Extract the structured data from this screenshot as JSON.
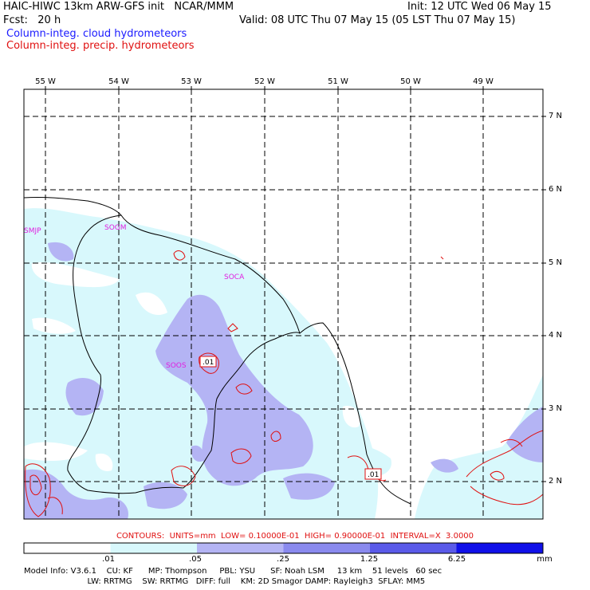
{
  "header": {
    "model_title": "HAIC-HIWC 13km ARW-GFS init   NCAR/MMM",
    "init_line": "Init: 12 UTC Wed 06 May 15",
    "fcst_line": "Fcst:   20 h",
    "valid_line": "Valid: 08 UTC Thu 07 May 15 (05 LST Thu 07 May 15)",
    "field_cloud": "Column-integ. cloud hydrometeors",
    "field_precip": "Column-integ. precip. hydrometeors"
  },
  "map": {
    "lon_labels": [
      "55 W",
      "54 W",
      "53 W",
      "52 W",
      "51 W",
      "50 W",
      "49 W"
    ],
    "lat_labels": [
      "7 N",
      "6 N",
      "5 N",
      "4 N",
      "3 N",
      "2 N"
    ],
    "stations": [
      "SMJP",
      "SOGM",
      "SOCA",
      "SOOS"
    ],
    "contour_labels": [
      ".01",
      ".01"
    ]
  },
  "contours_line": "CONTOURS:  UNITS=mm  LOW= 0.10000E-01  HIGH= 0.90000E-01  INTERVAL=X  3.0000",
  "colorbar": {
    "labels": [
      ".01",
      ".05",
      ".25",
      "1.25",
      "6.25",
      "mm"
    ],
    "colors": [
      "#ffffff",
      "#d8f8fc",
      "#b4b4f4",
      "#8a8aee",
      "#5a5ae8",
      "#1010e8"
    ]
  },
  "footer": {
    "line1": "Model Info: V3.6.1    CU: KF      MP: Thompson     PBL: YSU      SF: Noah LSM     13 km    51 levels   60 sec",
    "line2": "                         LW: RRTMG    SW: RRTMG   DIFF: full    KM: 2D Smagor DAMP: Rayleigh3  SFLAY: MM5"
  }
}
